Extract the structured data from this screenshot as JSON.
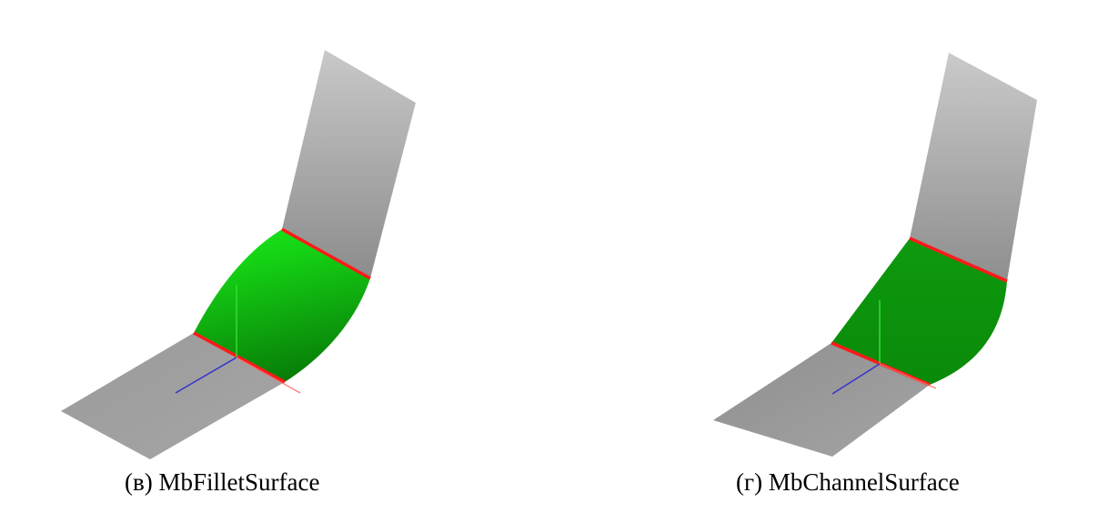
{
  "figures": [
    {
      "label": "(в)",
      "name": "MbFilletSurface"
    },
    {
      "label": "(г)",
      "name": "MbChannelSurface"
    }
  ],
  "colors": {
    "plane_light": "#d4d4d4",
    "plane_dark": "#8e8e8e",
    "fillet_bright": "#19e619",
    "fillet_dark": "#0a8a0a",
    "channel_green": "#0c8f0c",
    "boundary_red": "#ff2020",
    "axis_x": "#ff6a6a",
    "axis_y": "#33dd33",
    "axis_z": "#3333cc",
    "background": "#ffffff"
  }
}
